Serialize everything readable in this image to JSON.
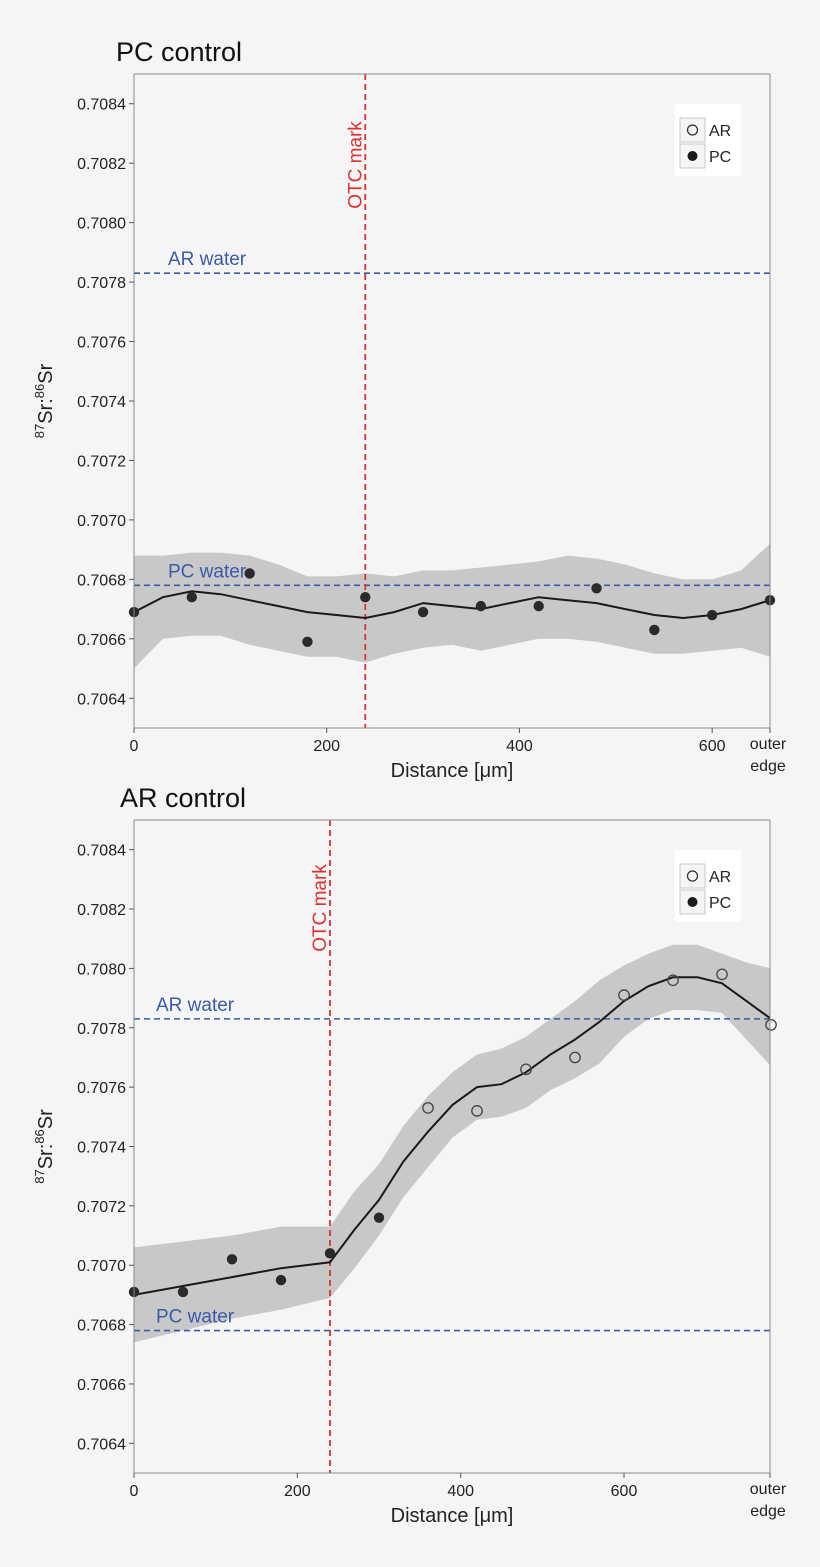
{
  "chart_data": [
    {
      "type": "scatter",
      "title": "PC control",
      "xlabel": "Distance [μm]",
      "ylabel": "87Sr:86Sr",
      "xlim": [
        0,
        660
      ],
      "ylim": [
        0.7063,
        0.7085
      ],
      "x_ticks": [
        "0",
        "200",
        "400",
        "600"
      ],
      "x_end_label": [
        "outer",
        "edge"
      ],
      "y_ticks": [
        "0.7064",
        "0.7066",
        "0.7068",
        "0.7070",
        "0.7072",
        "0.7074",
        "0.7076",
        "0.7078",
        "0.7080",
        "0.7082",
        "0.7084"
      ],
      "legend": [
        "AR",
        "PC"
      ],
      "ref_lines": [
        {
          "label": "AR water",
          "y": 0.70783,
          "color": "#3a5aa8"
        },
        {
          "label": "PC water",
          "y": 0.70678,
          "color": "#3a5aa8"
        }
      ],
      "otc_mark": {
        "label": "OTC mark",
        "x": 240,
        "color": "#e03030"
      },
      "series": [
        {
          "name": "PC",
          "marker": "filled",
          "x": [
            0,
            60,
            120,
            180,
            240,
            300,
            360,
            420,
            480,
            540,
            600,
            660
          ],
          "y": [
            0.70669,
            0.70674,
            0.70682,
            0.70659,
            0.70674,
            0.70669,
            0.70671,
            0.70671,
            0.70677,
            0.70663,
            0.70668,
            0.70673
          ]
        },
        {
          "name": "AR",
          "marker": "open",
          "x": [],
          "y": []
        }
      ],
      "fit": {
        "x": [
          0,
          30,
          60,
          90,
          120,
          150,
          180,
          210,
          240,
          270,
          300,
          330,
          360,
          390,
          420,
          450,
          480,
          510,
          540,
          570,
          600,
          630,
          660
        ],
        "y": [
          0.70669,
          0.70674,
          0.70676,
          0.70675,
          0.70673,
          0.70671,
          0.70669,
          0.70668,
          0.70667,
          0.70669,
          0.70672,
          0.70671,
          0.7067,
          0.70672,
          0.70674,
          0.70673,
          0.70672,
          0.7067,
          0.70668,
          0.70667,
          0.70668,
          0.7067,
          0.70673
        ],
        "upper": [
          0.70688,
          0.70688,
          0.70689,
          0.70689,
          0.70688,
          0.70685,
          0.70681,
          0.70681,
          0.70682,
          0.70681,
          0.70683,
          0.70683,
          0.70684,
          0.70685,
          0.70686,
          0.70688,
          0.70687,
          0.70685,
          0.70682,
          0.7068,
          0.7068,
          0.70683,
          0.70692
        ],
        "lower": [
          0.7065,
          0.7066,
          0.70661,
          0.70661,
          0.70658,
          0.70656,
          0.70654,
          0.70654,
          0.70652,
          0.70655,
          0.70657,
          0.70658,
          0.70656,
          0.70658,
          0.7066,
          0.7066,
          0.70659,
          0.70657,
          0.70655,
          0.70655,
          0.70656,
          0.70657,
          0.70654
        ]
      }
    },
    {
      "type": "scatter",
      "title": "AR control",
      "xlabel": "Distance [μm]",
      "ylabel": "87Sr:86Sr",
      "xlim": [
        0,
        780
      ],
      "ylim": [
        0.7063,
        0.7085
      ],
      "x_ticks": [
        "0",
        "200",
        "400",
        "600"
      ],
      "x_end_label": [
        "outer",
        "edge"
      ],
      "y_ticks": [
        "0.7064",
        "0.7066",
        "0.7068",
        "0.7070",
        "0.7072",
        "0.7074",
        "0.7076",
        "0.7078",
        "0.7080",
        "0.7082",
        "0.7084"
      ],
      "legend": [
        "AR",
        "PC"
      ],
      "ref_lines": [
        {
          "label": "AR water",
          "y": 0.70783,
          "color": "#3a5aa8"
        },
        {
          "label": "PC water",
          "y": 0.70678,
          "color": "#3a5aa8"
        }
      ],
      "otc_mark": {
        "label": "OTC mark",
        "x": 240,
        "color": "#e03030"
      },
      "series": [
        {
          "name": "PC",
          "marker": "filled",
          "x": [
            0,
            60,
            120,
            180,
            240,
            300
          ],
          "y": [
            0.70691,
            0.70691,
            0.70702,
            0.70695,
            0.70704,
            0.70716
          ]
        },
        {
          "name": "AR",
          "marker": "open",
          "x": [
            360,
            420,
            480,
            540,
            600,
            660,
            720,
            780
          ],
          "y": [
            0.70753,
            0.70752,
            0.70766,
            0.7077,
            0.70791,
            0.70796,
            0.70798,
            0.70781
          ]
        }
      ],
      "fit": {
        "x": [
          0,
          60,
          120,
          180,
          210,
          240,
          270,
          300,
          330,
          360,
          390,
          420,
          450,
          480,
          510,
          540,
          570,
          600,
          630,
          660,
          690,
          720,
          750,
          780
        ],
        "y": [
          0.7069,
          0.70693,
          0.70696,
          0.70699,
          0.707,
          0.70701,
          0.70712,
          0.70722,
          0.70735,
          0.70745,
          0.70754,
          0.7076,
          0.70761,
          0.70765,
          0.70771,
          0.70776,
          0.70782,
          0.70789,
          0.70794,
          0.70797,
          0.70797,
          0.70795,
          0.70789,
          0.70783
        ],
        "upper": [
          0.70706,
          0.70708,
          0.7071,
          0.70713,
          0.70713,
          0.70713,
          0.70725,
          0.70734,
          0.70747,
          0.70757,
          0.70765,
          0.70771,
          0.70773,
          0.70777,
          0.70783,
          0.70789,
          0.70796,
          0.70801,
          0.70805,
          0.70808,
          0.70808,
          0.70805,
          0.70802,
          0.708
        ],
        "lower": [
          0.70674,
          0.70678,
          0.70682,
          0.70685,
          0.70687,
          0.70689,
          0.70699,
          0.7071,
          0.70723,
          0.70733,
          0.70743,
          0.70749,
          0.7075,
          0.70753,
          0.70759,
          0.70763,
          0.70768,
          0.70777,
          0.70783,
          0.70786,
          0.70786,
          0.70785,
          0.70776,
          0.70767
        ]
      }
    }
  ]
}
